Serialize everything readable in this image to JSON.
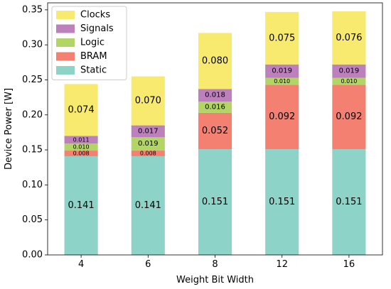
{
  "chart_data": {
    "type": "bar",
    "stacked": true,
    "categories": [
      "4",
      "6",
      "8",
      "12",
      "16"
    ],
    "series": [
      {
        "name": "Static",
        "color": "#8dd3c7",
        "values": [
          0.141,
          0.141,
          0.151,
          0.151,
          0.151
        ],
        "labels": [
          "0.141",
          "0.141",
          "0.151",
          "0.151",
          "0.151"
        ]
      },
      {
        "name": "BRAM",
        "color": "#f48072",
        "values": [
          0.008,
          0.008,
          0.052,
          0.092,
          0.092
        ],
        "labels": [
          "0.008",
          "0.008",
          "0.052",
          "0.092",
          "0.092"
        ]
      },
      {
        "name": "Logic",
        "color": "#b3d566",
        "values": [
          0.01,
          0.019,
          0.016,
          0.01,
          0.01
        ],
        "labels": [
          "0.010",
          "0.019",
          "0.016",
          "0.010",
          "0.010"
        ]
      },
      {
        "name": "Signals",
        "color": "#bc80bd",
        "values": [
          0.011,
          0.017,
          0.018,
          0.019,
          0.019
        ],
        "labels": [
          "0.011",
          "0.017",
          "0.018",
          "0.019",
          "0.019"
        ]
      },
      {
        "name": "Clocks",
        "color": "#f8ea6f",
        "values": [
          0.074,
          0.07,
          0.08,
          0.075,
          0.076
        ],
        "labels": [
          "0.074",
          "0.070",
          "0.080",
          "0.075",
          "0.076"
        ]
      }
    ],
    "legend_order": [
      "Clocks",
      "Signals",
      "Logic",
      "BRAM",
      "Static"
    ],
    "xlabel": "Weight Bit Width",
    "ylabel": "Device Power [W]",
    "ylim": [
      0,
      0.36
    ],
    "yticks": [
      "0.00",
      "0.05",
      "0.10",
      "0.15",
      "0.20",
      "0.25",
      "0.30",
      "0.35"
    ],
    "grid": false,
    "legend_position": "top-left"
  }
}
